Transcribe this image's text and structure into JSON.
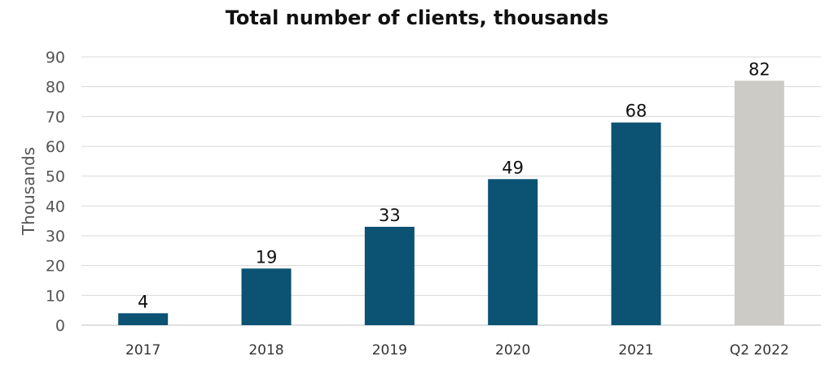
{
  "chart_data": {
    "type": "bar",
    "title": "Total number of clients, thousands",
    "ylabel": "Thousands",
    "xlabel": "",
    "categories": [
      "2017",
      "2018",
      "2019",
      "2020",
      "2021",
      "Q2 2022"
    ],
    "values": [
      4,
      19,
      33,
      49,
      68,
      82
    ],
    "data_labels": [
      "4",
      "19",
      "33",
      "49",
      "68",
      "82"
    ],
    "ylim": [
      0,
      90
    ],
    "yticks": [
      0,
      10,
      20,
      30,
      40,
      50,
      60,
      70,
      80,
      90
    ],
    "grid": true,
    "legend": "none",
    "colors": {
      "actual": "#0b5273",
      "highlight": "#cdcbc6",
      "gridline": "#d9d9d9"
    },
    "highlight_index": 5
  }
}
